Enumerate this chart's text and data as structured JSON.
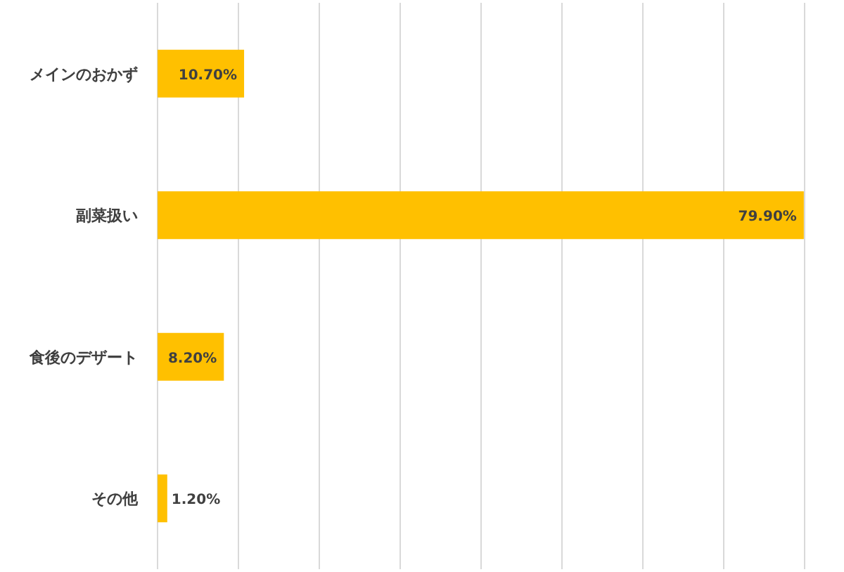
{
  "chart_data": {
    "type": "bar",
    "orientation": "horizontal",
    "categories": [
      "メインのおかず",
      "副菜扱い",
      "食後のデザート",
      "その他"
    ],
    "values": [
      10.7,
      79.9,
      8.2,
      1.2
    ],
    "value_labels": [
      "10.70%",
      "79.90%",
      "8.20%",
      "1.20%"
    ],
    "color": "#ffc000",
    "xlim": [
      0,
      80
    ],
    "xticks": [
      {
        "value": 0,
        "label": null
      },
      {
        "value": 10,
        "label": null
      },
      {
        "value": 20,
        "label": null
      },
      {
        "value": 30,
        "label": null
      },
      {
        "value": 40,
        "label": null
      },
      {
        "value": 50,
        "label": null
      },
      {
        "value": 60,
        "label": null
      },
      {
        "value": 70,
        "label": null
      },
      {
        "value": 80,
        "label": null
      }
    ],
    "grid": "x",
    "tick_labels": "y"
  }
}
